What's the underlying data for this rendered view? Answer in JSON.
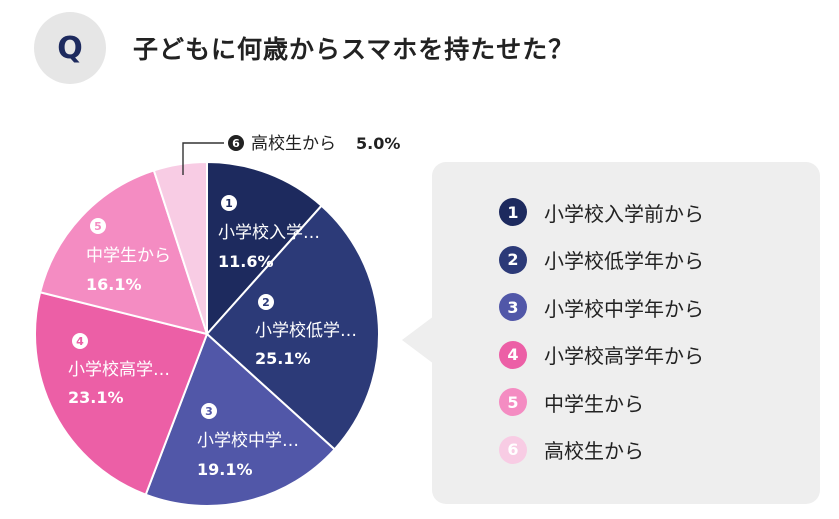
{
  "header": {
    "badge": "Q",
    "question": "子どもに何歳からスマホを持たせた？"
  },
  "chart_data": {
    "type": "pie",
    "title": "子どもに何歳からスマホを持たせた？",
    "slices": [
      {
        "num": "1",
        "label": "小学校入学前から",
        "short_label": "小学校入学…",
        "value": 11.6,
        "value_label": "11.6%",
        "color": "#1d2a5e",
        "text_color": "#ffffff"
      },
      {
        "num": "2",
        "label": "小学校低学年から",
        "short_label": "小学校低学…",
        "value": 25.1,
        "value_label": "25.1%",
        "color": "#2c3a78",
        "text_color": "#ffffff"
      },
      {
        "num": "3",
        "label": "小学校中学年から",
        "short_label": "小学校中学…",
        "value": 19.1,
        "value_label": "19.1%",
        "color": "#5157a8",
        "text_color": "#ffffff"
      },
      {
        "num": "4",
        "label": "小学校高学年から",
        "short_label": "小学校高学…",
        "value": 23.1,
        "value_label": "23.1%",
        "color": "#ec5fa6",
        "text_color": "#ffffff"
      },
      {
        "num": "5",
        "label": "中学生から",
        "short_label": "中学生から",
        "value": 16.1,
        "value_label": "16.1%",
        "color": "#f48cc2",
        "text_color": "#ffffff"
      },
      {
        "num": "6",
        "label": "高校生から",
        "short_label": "高校生から",
        "value": 5.0,
        "value_label": "5.0%",
        "color": "#f8cce4",
        "text_color": "#222222"
      }
    ]
  }
}
